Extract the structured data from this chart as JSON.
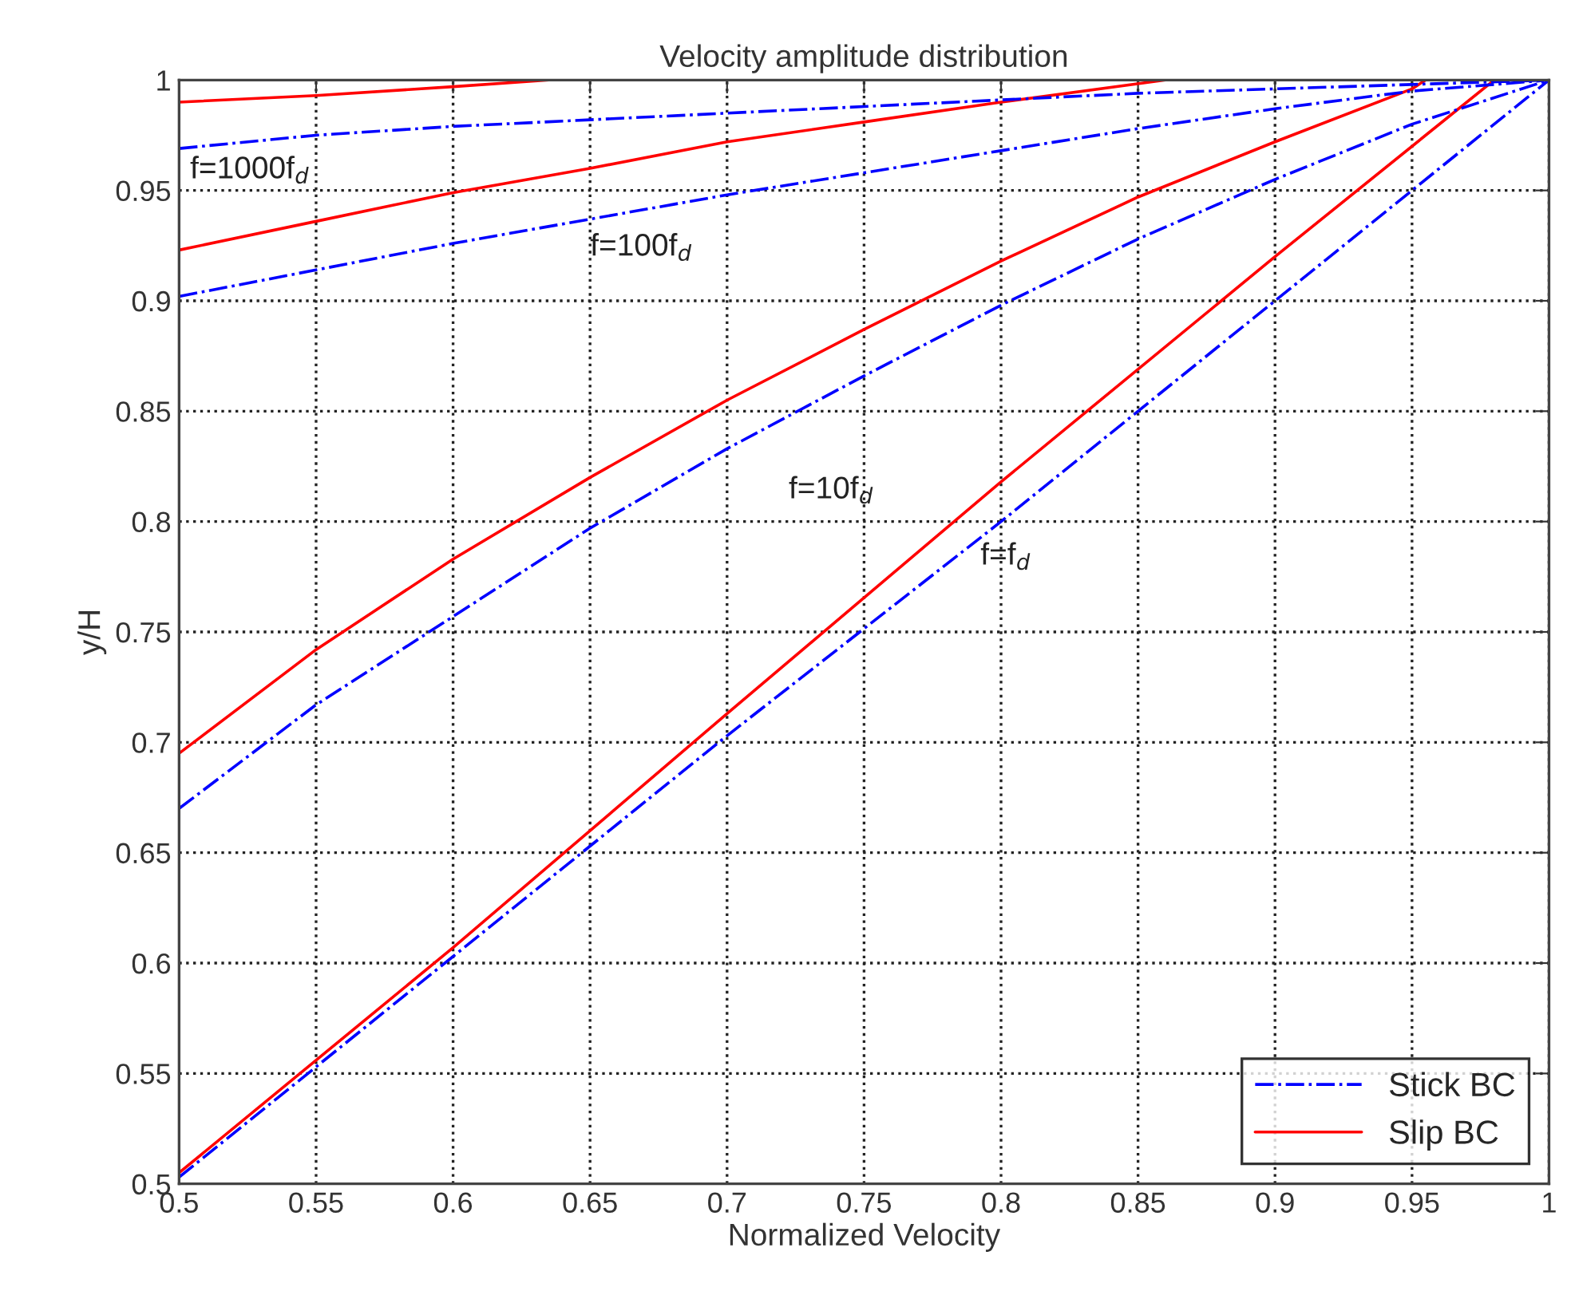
{
  "chart_data": {
    "type": "line",
    "title": "Velocity amplitude distribution",
    "xlabel": "Normalized Velocity",
    "ylabel": "y/H",
    "xlim": [
      0.5,
      1
    ],
    "ylim": [
      0.5,
      1
    ],
    "xticks": [
      0.5,
      0.55,
      0.6,
      0.65,
      0.7,
      0.75,
      0.8,
      0.85,
      0.9,
      0.95,
      1
    ],
    "yticks": [
      0.5,
      0.55,
      0.6,
      0.65,
      0.7,
      0.75,
      0.8,
      0.85,
      0.9,
      0.95,
      1
    ],
    "grid": true,
    "legend": "bottom right",
    "series": [
      {
        "name": "Stick BC",
        "color": "#0000ff",
        "line_style": "dashdot",
        "x": [
          0.5,
          0.6,
          0.7,
          0.8,
          0.9,
          1.0
        ],
        "values": [
          0.503,
          0.603,
          0.703,
          0.8,
          0.9,
          1.0
        ]
      },
      {
        "name": "Slip BC",
        "color": "#ff0000",
        "line_style": "solid",
        "x": [
          0.5,
          0.6,
          0.7,
          0.8,
          0.9,
          0.98
        ],
        "values": [
          0.505,
          0.607,
          0.713,
          0.818,
          0.92,
          1.0
        ]
      },
      {
        "color": "#0000ff",
        "line_style": "dashdot",
        "x": [
          0.5,
          0.55,
          0.6,
          0.65,
          0.7,
          0.75,
          0.8,
          0.85,
          0.9,
          0.95,
          1.0
        ],
        "values": [
          0.67,
          0.717,
          0.757,
          0.797,
          0.833,
          0.866,
          0.898,
          0.928,
          0.955,
          0.98,
          1.0
        ]
      },
      {
        "color": "#ff0000",
        "line_style": "solid",
        "x": [
          0.5,
          0.55,
          0.6,
          0.65,
          0.7,
          0.75,
          0.8,
          0.85,
          0.9,
          0.95,
          0.955
        ],
        "values": [
          0.695,
          0.742,
          0.783,
          0.82,
          0.855,
          0.887,
          0.918,
          0.947,
          0.972,
          0.996,
          1.0
        ]
      },
      {
        "color": "#0000ff",
        "line_style": "dashdot",
        "x": [
          0.5,
          0.55,
          0.6,
          0.65,
          0.7,
          0.75,
          0.8,
          0.85,
          0.9,
          0.95,
          1.0
        ],
        "values": [
          0.902,
          0.914,
          0.926,
          0.937,
          0.948,
          0.958,
          0.968,
          0.978,
          0.987,
          0.995,
          1.0
        ]
      },
      {
        "color": "#ff0000",
        "line_style": "solid",
        "x": [
          0.5,
          0.55,
          0.6,
          0.65,
          0.7,
          0.75,
          0.8,
          0.86
        ],
        "values": [
          0.923,
          0.936,
          0.949,
          0.96,
          0.972,
          0.981,
          0.99,
          1.0
        ]
      },
      {
        "color": "#0000ff",
        "line_style": "dashdot",
        "x": [
          0.5,
          0.55,
          0.6,
          0.65,
          0.7,
          0.75,
          0.8,
          0.85,
          0.9,
          0.95,
          1.0
        ],
        "values": [
          0.969,
          0.975,
          0.979,
          0.982,
          0.985,
          0.988,
          0.991,
          0.994,
          0.996,
          0.998,
          1.0
        ]
      },
      {
        "color": "#ff0000",
        "line_style": "solid",
        "x": [
          0.5,
          0.55,
          0.6,
          0.635
        ],
        "values": [
          0.99,
          0.993,
          0.997,
          1.0
        ]
      }
    ],
    "annotations": [
      "f=1000f$_{d}$",
      "f=100f$_{d}$",
      "f=10f$_{d}$",
      "f=f$_{d}$"
    ]
  }
}
